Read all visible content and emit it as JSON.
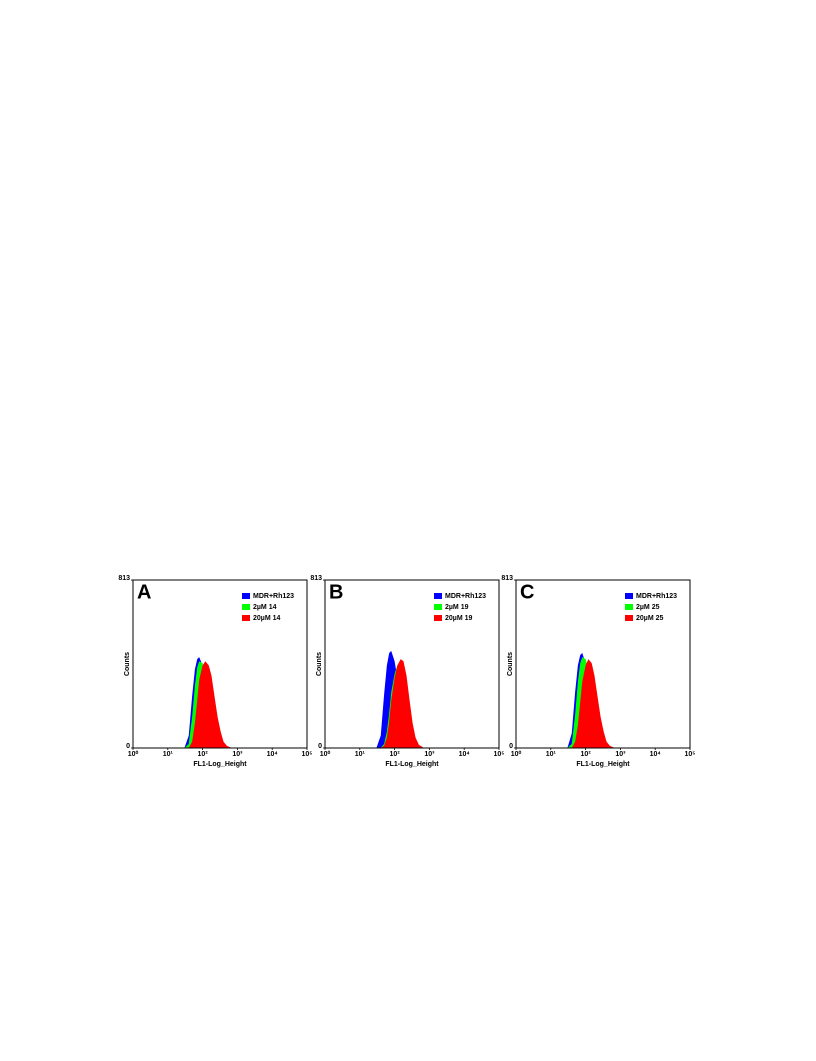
{
  "chart_data": [
    {
      "type": "area",
      "panel_label": "A",
      "xscale": "log",
      "legend": "upper right",
      "xlabel": "FL1-Log_Height",
      "ylabel": "Counts",
      "xlim": [
        1,
        100000
      ],
      "xticks": [
        {
          "value": 1,
          "label": "10⁰"
        },
        {
          "value": 10,
          "label": "10¹"
        },
        {
          "value": 100,
          "label": "10²"
        },
        {
          "value": 1000,
          "label": "10³"
        },
        {
          "value": 10000,
          "label": "10⁴"
        },
        {
          "value": 100000,
          "label": "10⁵"
        }
      ],
      "ylim": [
        0,
        813
      ],
      "yticks": [
        0,
        813
      ],
      "x": [
        30,
        40,
        50,
        60,
        70,
        80,
        100,
        120,
        150,
        180,
        220,
        270,
        330,
        400,
        500,
        700,
        1000
      ],
      "series": [
        {
          "name": "MDR+Rh123",
          "color": "#0000ff",
          "values": [
            0,
            60,
            250,
            380,
            430,
            440,
            400,
            330,
            230,
            140,
            70,
            30,
            10,
            0,
            0,
            0,
            0
          ]
        },
        {
          "name": "2µM 14",
          "color": "#00ff00",
          "values": [
            0,
            20,
            150,
            300,
            390,
            420,
            410,
            360,
            280,
            190,
            110,
            50,
            20,
            5,
            0,
            0,
            0
          ]
        },
        {
          "name": "20µM 14",
          "color": "#ff0000",
          "values": [
            0,
            0,
            30,
            120,
            230,
            330,
            400,
            420,
            400,
            350,
            250,
            150,
            80,
            30,
            10,
            0,
            0
          ]
        }
      ]
    },
    {
      "type": "area",
      "panel_label": "B",
      "xscale": "log",
      "legend": "upper right",
      "xlabel": "FL1-Log_Height",
      "ylabel": "Counts",
      "xlim": [
        1,
        100000
      ],
      "xticks": [
        {
          "value": 1,
          "label": "10⁰"
        },
        {
          "value": 10,
          "label": "10¹"
        },
        {
          "value": 100,
          "label": "10²"
        },
        {
          "value": 1000,
          "label": "10³"
        },
        {
          "value": 10000,
          "label": "10⁴"
        },
        {
          "value": 100000,
          "label": "10⁵"
        }
      ],
      "ylim": [
        0,
        813
      ],
      "yticks": [
        0,
        813
      ],
      "x": [
        30,
        40,
        50,
        60,
        70,
        80,
        100,
        120,
        150,
        180,
        220,
        270,
        330,
        400,
        500,
        700,
        1000
      ],
      "series": [
        {
          "name": "MDR+Rh123",
          "color": "#0000ff",
          "values": [
            0,
            60,
            260,
            400,
            460,
            470,
            420,
            340,
            230,
            140,
            70,
            30,
            10,
            0,
            0,
            0,
            0
          ]
        },
        {
          "name": "2µM 19",
          "color": "#00ff00",
          "values": [
            0,
            0,
            20,
            80,
            170,
            270,
            360,
            400,
            410,
            380,
            300,
            190,
            100,
            40,
            10,
            0,
            0
          ]
        },
        {
          "name": "20µM 19",
          "color": "#ff0000",
          "values": [
            0,
            0,
            10,
            50,
            130,
            230,
            340,
            400,
            430,
            420,
            350,
            230,
            120,
            50,
            15,
            0,
            0
          ]
        }
      ]
    },
    {
      "type": "area",
      "panel_label": "C",
      "xscale": "log",
      "legend": "upper right",
      "xlabel": "FL1-Log_Height",
      "ylabel": "Counts",
      "xlim": [
        1,
        100000
      ],
      "xticks": [
        {
          "value": 1,
          "label": "10⁰"
        },
        {
          "value": 10,
          "label": "10¹"
        },
        {
          "value": 100,
          "label": "10²"
        },
        {
          "value": 1000,
          "label": "10³"
        },
        {
          "value": 10000,
          "label": "10⁴"
        },
        {
          "value": 100000,
          "label": "10⁵"
        }
      ],
      "ylim": [
        0,
        813
      ],
      "yticks": [
        0,
        813
      ],
      "x": [
        30,
        40,
        50,
        60,
        70,
        80,
        100,
        120,
        150,
        180,
        220,
        270,
        330,
        400,
        500,
        700,
        1000
      ],
      "series": [
        {
          "name": "MDR+Rh123",
          "color": "#0000ff",
          "values": [
            0,
            70,
            270,
            400,
            450,
            460,
            410,
            330,
            230,
            140,
            70,
            30,
            10,
            0,
            0,
            0,
            0
          ]
        },
        {
          "name": "2µM 25",
          "color": "#00ff00",
          "values": [
            0,
            20,
            160,
            320,
            410,
            440,
            430,
            380,
            290,
            190,
            110,
            50,
            20,
            5,
            0,
            0,
            0
          ]
        },
        {
          "name": "20µM 25",
          "color": "#ff0000",
          "values": [
            0,
            0,
            30,
            110,
            220,
            320,
            400,
            430,
            410,
            350,
            250,
            150,
            80,
            30,
            10,
            0,
            0
          ]
        }
      ]
    }
  ]
}
